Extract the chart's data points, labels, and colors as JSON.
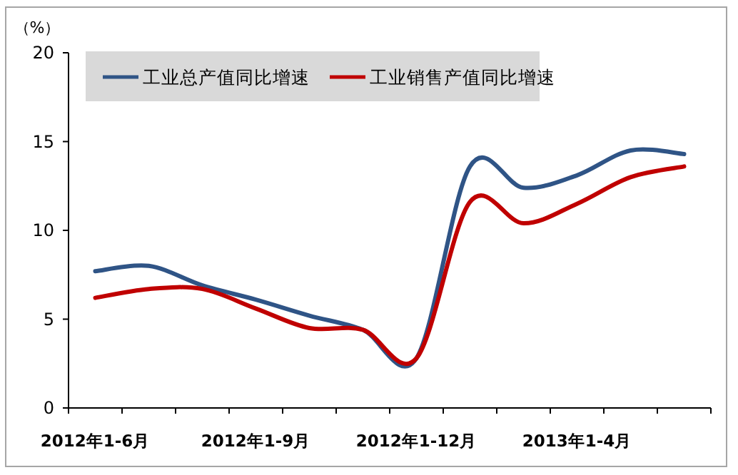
{
  "chart_data": {
    "type": "line",
    "ylabel": "（%）",
    "categories": [
      "2012年1-6月",
      null,
      null,
      "2012年1-9月",
      null,
      null,
      "2012年1-12月",
      null,
      null,
      "2013年1-4月",
      null,
      null
    ],
    "series": [
      {
        "name": "工业总产值同比增速",
        "color": "#2f5486",
        "values": [
          7.7,
          8.0,
          6.9,
          6.1,
          5.2,
          4.4,
          2.8,
          13.6,
          12.4,
          13.1,
          14.5,
          14.3
        ]
      },
      {
        "name": "工业销售产值同比增速",
        "color": "#c00000",
        "values": [
          6.2,
          6.7,
          6.7,
          5.6,
          4.5,
          4.4,
          2.8,
          11.6,
          10.4,
          11.5,
          13.0,
          13.6
        ]
      }
    ],
    "ylim": [
      0,
      20
    ],
    "yticks": [
      0,
      5,
      10,
      15,
      20
    ],
    "legend": "top"
  }
}
